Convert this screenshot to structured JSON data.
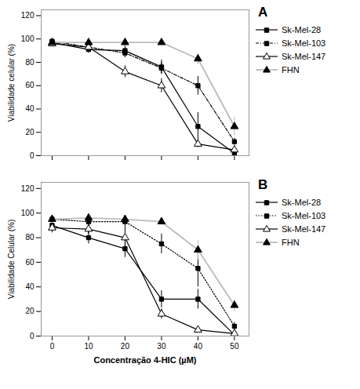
{
  "chart_data": [
    {
      "type": "line",
      "title": "A",
      "x": [
        0,
        10,
        20,
        30,
        40,
        50
      ],
      "xlim": [
        -3,
        54
      ],
      "xticks": [
        0,
        10,
        20,
        30,
        40,
        50
      ],
      "ylim": [
        0,
        125
      ],
      "yticks": [
        0,
        20,
        40,
        60,
        80,
        100,
        120
      ],
      "ylabel": "Viabilidade celular (%)",
      "tick_labels": "y",
      "grid": false,
      "legend": "right",
      "series": [
        {
          "name": "Sk-Mel-28",
          "color": "#000000",
          "marker": "filled_square",
          "line_style": "solid",
          "values": [
            97,
            91,
            90,
            76,
            25,
            2
          ],
          "errors": [
            2,
            3,
            4,
            6,
            12,
            1
          ]
        },
        {
          "name": "Sk-Mel-103",
          "color": "#000000",
          "marker": "filled_square",
          "line_style": "dashdot",
          "values": [
            98,
            93,
            88,
            75,
            60,
            12
          ],
          "errors": [
            2,
            3,
            4,
            5,
            8,
            3
          ]
        },
        {
          "name": "Sk-Mel-147",
          "color": "#000000",
          "marker": "open_triangle",
          "line_style": "solid",
          "values": [
            96,
            93,
            72,
            60,
            10,
            5
          ],
          "errors": [
            2,
            3,
            5,
            6,
            3,
            2
          ]
        },
        {
          "name": "FHN",
          "color": "#bbbbbb",
          "marker": "filled_triangle",
          "line_style": "solid",
          "values": [
            97,
            97,
            97,
            97,
            83,
            25
          ],
          "errors": [
            2,
            2,
            2,
            2,
            5,
            8
          ]
        }
      ]
    },
    {
      "type": "line",
      "title": "B",
      "x": [
        0,
        10,
        20,
        30,
        40,
        50
      ],
      "xlim": [
        -3,
        54
      ],
      "xticks": [
        0,
        10,
        20,
        30,
        40,
        50
      ],
      "ylim": [
        0,
        125
      ],
      "yticks": [
        0,
        20,
        40,
        60,
        80,
        100,
        120
      ],
      "xlabel": "Concentração 4-HIC (µM)",
      "ylabel": "Viabilidade Celular (%)",
      "grid": false,
      "legend": "right",
      "series": [
        {
          "name": "Sk-Mel-28",
          "color": "#000000",
          "marker": "filled_square",
          "line_style": "solid",
          "values": [
            90,
            80,
            71,
            30,
            30,
            1
          ],
          "errors": [
            3,
            5,
            7,
            7,
            8,
            1
          ]
        },
        {
          "name": "Sk-Mel-103",
          "color": "#000000",
          "marker": "filled_square",
          "line_style": "dotted",
          "values": [
            95,
            93,
            93,
            75,
            55,
            8
          ],
          "errors": [
            3,
            3,
            3,
            8,
            15,
            3
          ]
        },
        {
          "name": "Sk-Mel-147",
          "color": "#000000",
          "marker": "open_triangle",
          "line_style": "solid",
          "values": [
            88,
            87,
            80,
            18,
            5,
            2
          ],
          "errors": [
            4,
            4,
            10,
            4,
            2,
            1
          ]
        },
        {
          "name": "FHN",
          "color": "#bbbbbb",
          "marker": "filled_triangle",
          "line_style": "solid",
          "values": [
            95,
            96,
            95,
            93,
            70,
            25
          ],
          "errors": [
            3,
            2,
            2,
            3,
            8,
            5
          ]
        }
      ]
    }
  ]
}
